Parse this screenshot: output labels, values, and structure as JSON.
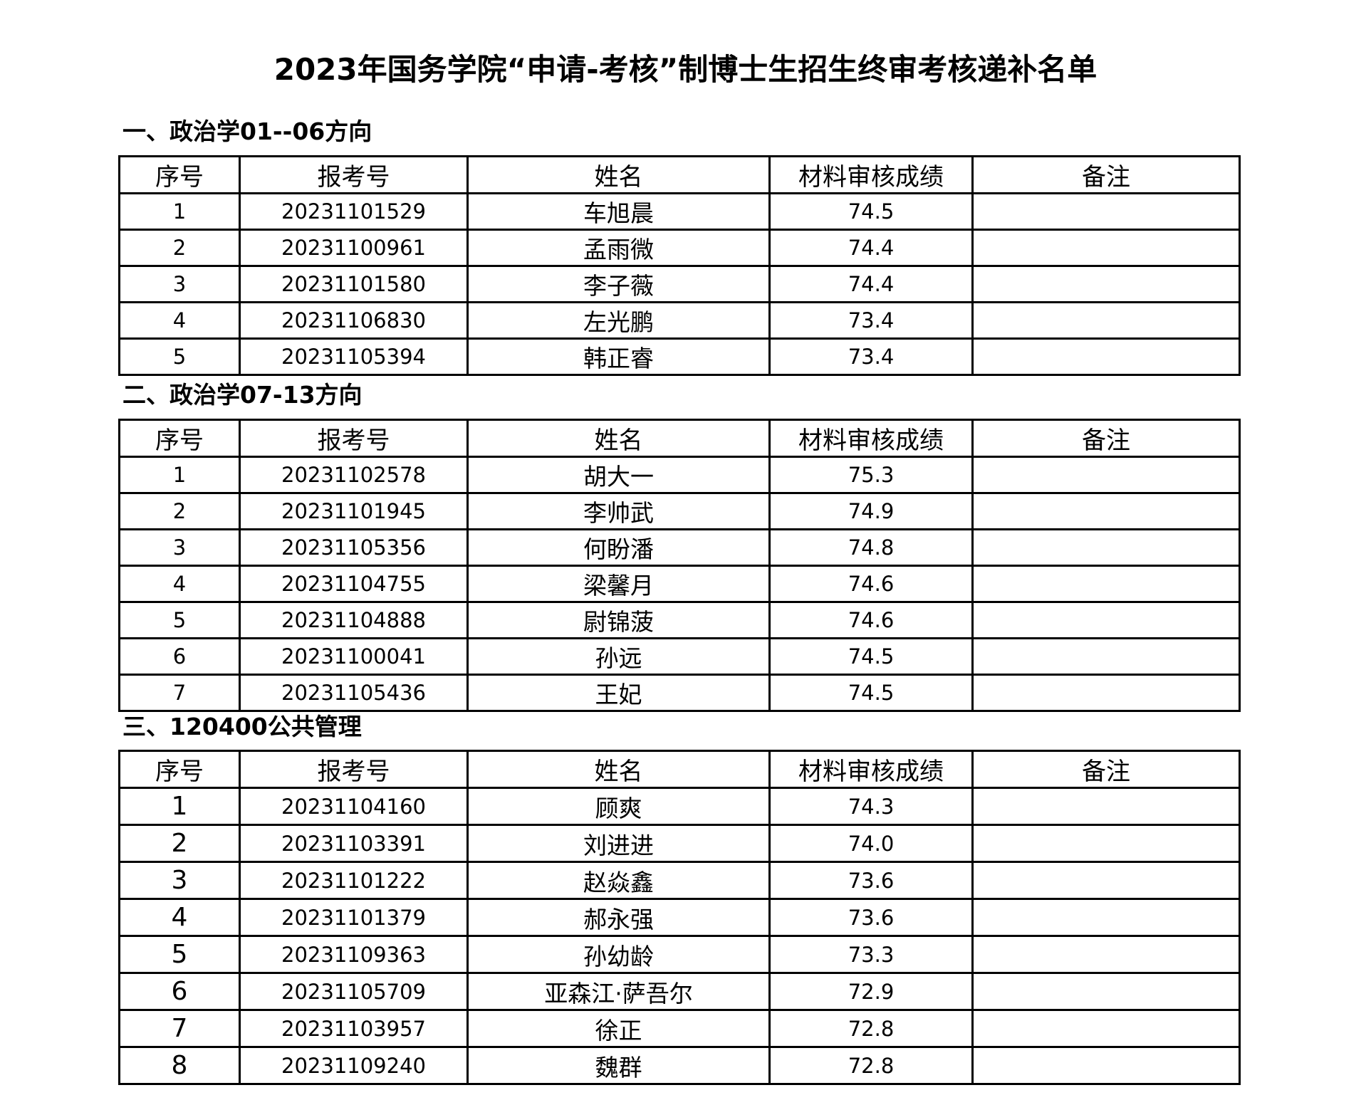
{
  "title": "2023年国务学院“申请-考核”制博士生招生终审考核递补名单",
  "columns": [
    "序号",
    "报考号",
    "姓名",
    "材料审核成绩",
    "备注"
  ],
  "sections": [
    {
      "heading": "一、政治学01--06方向",
      "rows": [
        [
          "1",
          "20231101529",
          "车旭晨",
          "74.5",
          ""
        ],
        [
          "2",
          "20231100961",
          "孟雨微",
          "74.4",
          ""
        ],
        [
          "3",
          "20231101580",
          "李子薇",
          "74.4",
          ""
        ],
        [
          "4",
          "20231106830",
          "左光鹏",
          "73.4",
          ""
        ],
        [
          "5",
          "20231105394",
          "韩正睿",
          "73.4",
          ""
        ]
      ]
    },
    {
      "heading": "二、政治学07-13方向",
      "rows": [
        [
          "1",
          "20231102578",
          "胡大一",
          "75.3",
          ""
        ],
        [
          "2",
          "20231101945",
          "李帅武",
          "74.9",
          ""
        ],
        [
          "3",
          "20231105356",
          "何盼潘",
          "74.8",
          ""
        ],
        [
          "4",
          "20231104755",
          "梁馨月",
          "74.6",
          ""
        ],
        [
          "5",
          "20231104888",
          "尉锦菠",
          "74.6",
          ""
        ],
        [
          "6",
          "20231100041",
          "孙远",
          "74.5",
          ""
        ],
        [
          "7",
          "20231105436",
          "王妃",
          "74.5",
          ""
        ]
      ]
    },
    {
      "heading": "三、120400公共管理",
      "rows": [
        [
          "1",
          "20231104160",
          "顾爽",
          "74.3",
          ""
        ],
        [
          "2",
          "20231103391",
          "刘进进",
          "74.0",
          ""
        ],
        [
          "3",
          "20231101222",
          "赵焱鑫",
          "73.6",
          ""
        ],
        [
          "4",
          "20231101379",
          "郝永强",
          "73.6",
          ""
        ],
        [
          "5",
          "20231109363",
          "孙幼龄",
          "73.3",
          ""
        ],
        [
          "6",
          "20231105709",
          "亚森江·萨吾尔",
          "72.9",
          ""
        ],
        [
          "7",
          "20231103957",
          "徐正",
          "72.8",
          ""
        ],
        [
          "8",
          "20231109240",
          "魏群",
          "72.8",
          ""
        ]
      ]
    }
  ]
}
